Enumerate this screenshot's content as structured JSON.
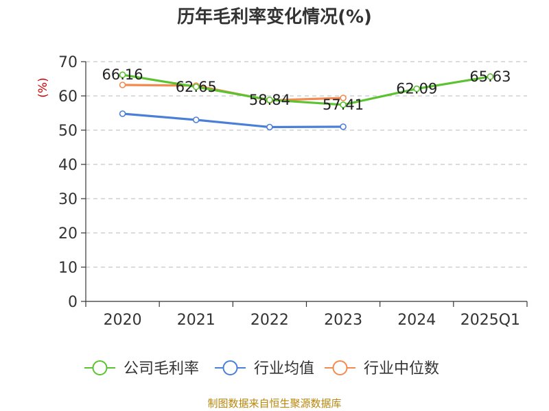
{
  "chart_data": {
    "type": "line",
    "title": "历年毛利率变化情况(%)",
    "ylabel": "(%)",
    "xlabel": "",
    "categories": [
      "2020",
      "2021",
      "2022",
      "2023",
      "2024",
      "2025Q1"
    ],
    "ylim": [
      0,
      70
    ],
    "yticks": [
      0,
      10,
      20,
      30,
      40,
      50,
      60,
      70
    ],
    "grid": true,
    "legend_position": "bottom",
    "series": [
      {
        "name": "公司毛利率",
        "color": "#5bc232",
        "values": [
          66.16,
          62.65,
          58.84,
          57.41,
          62.09,
          65.63
        ],
        "labels": [
          "66.16",
          "62.65",
          "58.84",
          "57.41",
          "62.09",
          "65.63"
        ]
      },
      {
        "name": "行业均值",
        "color": "#4a7fd8",
        "values": [
          54.8,
          53.0,
          50.9,
          51.0,
          null,
          null
        ],
        "labels": []
      },
      {
        "name": "行业中位数",
        "color": "#f28b50",
        "values": [
          63.2,
          63.0,
          58.7,
          59.4,
          null,
          null
        ],
        "labels": []
      }
    ]
  },
  "source": "制图数据来自恒生聚源数据库"
}
